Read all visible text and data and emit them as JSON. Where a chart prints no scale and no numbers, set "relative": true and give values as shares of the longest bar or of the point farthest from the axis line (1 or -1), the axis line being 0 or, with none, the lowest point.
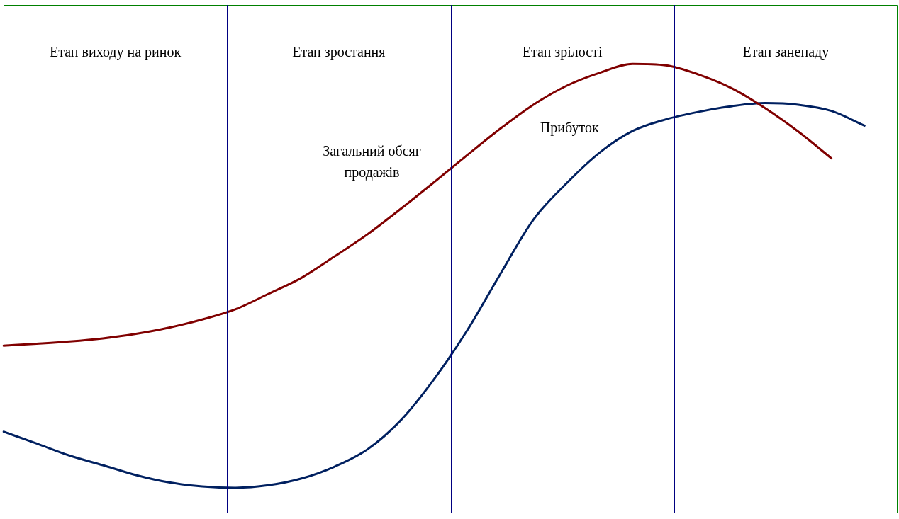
{
  "chart_data": {
    "type": "line",
    "relative": true,
    "legend": false,
    "marker": "none",
    "line_style": "solid",
    "categories": [
      null,
      null,
      null,
      null,
      null,
      null,
      null,
      null,
      null,
      null,
      null,
      null,
      null,
      null,
      null,
      null,
      null,
      null,
      null,
      null,
      null,
      null,
      null,
      null,
      null,
      null,
      null,
      null
    ],
    "series": [
      {
        "name": "Загальний обсяг продажів",
        "color": "#800000",
        "values": [
          0.0,
          0.007,
          0.015,
          0.026,
          0.042,
          0.064,
          0.093,
          0.129,
          0.184,
          0.241,
          0.317,
          0.396,
          0.486,
          0.58,
          0.676,
          0.77,
          0.855,
          0.922,
          0.968,
          1.0,
          0.995,
          0.962,
          0.913,
          0.843,
          0.76,
          0.665,
          null,
          null
        ]
      },
      {
        "name": "Прибуток",
        "color": "#002060",
        "values": [
          -0.305,
          -0.347,
          -0.39,
          -0.424,
          -0.459,
          -0.485,
          -0.499,
          -0.504,
          -0.495,
          -0.471,
          -0.429,
          -0.367,
          -0.264,
          -0.119,
          0.054,
          0.254,
          0.447,
          0.576,
          0.685,
          0.762,
          0.803,
          0.83,
          0.85,
          0.861,
          0.855,
          0.833,
          0.781,
          null
        ]
      }
    ],
    "ref_lines": [
      {
        "axis": "y",
        "value": 0,
        "color": "#008000"
      },
      {
        "axis": "y",
        "value": -0.109,
        "color": "#008000"
      }
    ],
    "annotations": [
      "Етап виходу на ринок",
      "Етап зростання",
      "Етап зрілості",
      "Етап занепаду"
    ]
  }
}
